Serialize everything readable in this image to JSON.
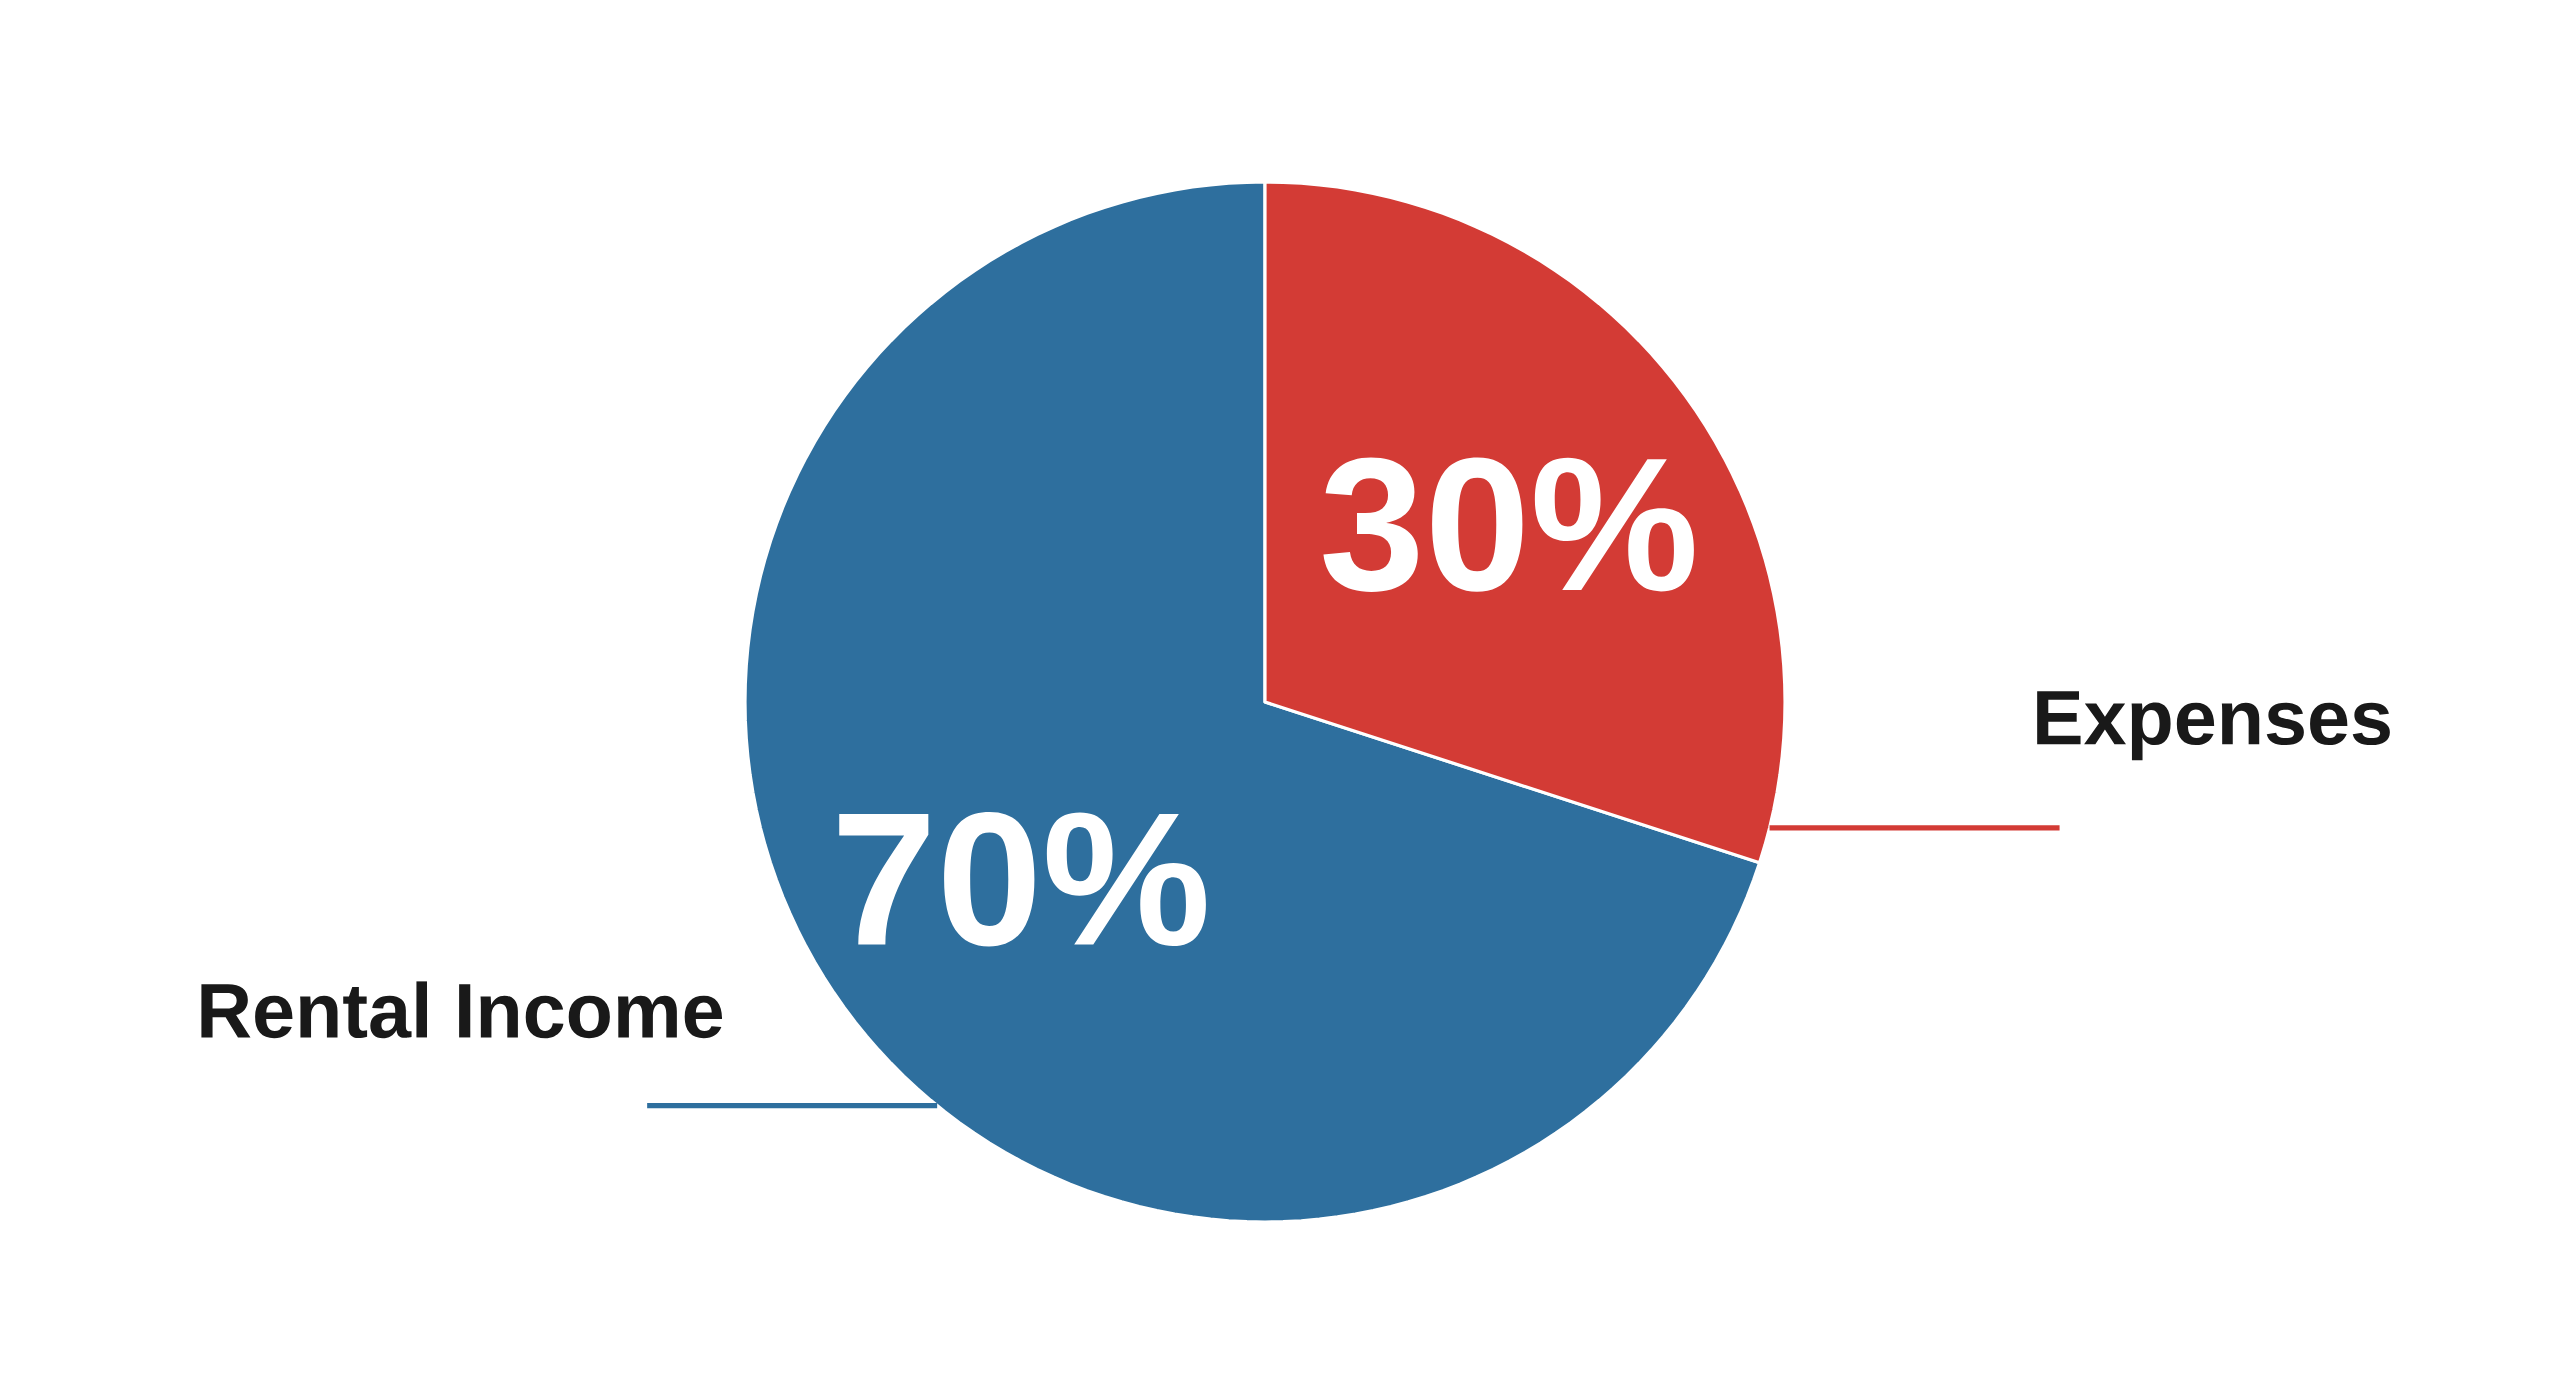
{
  "chart_data": {
    "type": "pie",
    "categories": [
      "Rental Income",
      "Expenses"
    ],
    "values": [
      70,
      30
    ],
    "value_labels": [
      "70%",
      "30%"
    ],
    "colors": [
      "#2e6f9e",
      "#d33b35"
    ]
  }
}
